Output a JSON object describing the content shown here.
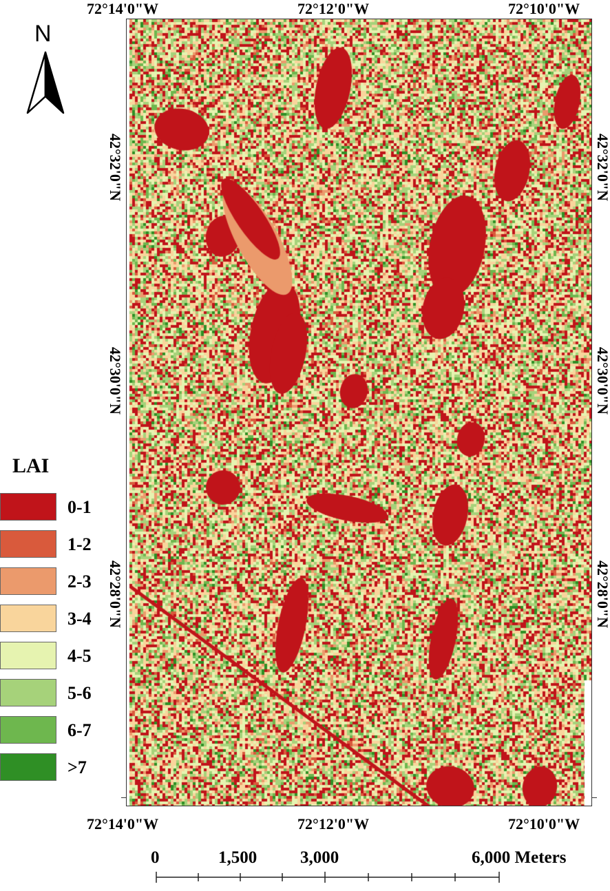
{
  "top_labels": [
    "72°14'0\"W",
    "72°12'0\"W",
    "72°10'0\"W"
  ],
  "bottom_labels": [
    "72°14'0\"W",
    "72°12'0\"W",
    "72°10'0\"W"
  ],
  "left_labels": [
    "42°32'0\"N",
    "42°30'0\"N",
    "42°28'0\"N"
  ],
  "right_labels": [
    "42°32'0\"N",
    "42°30'0\"N",
    "42°28'0\"N"
  ],
  "north_arrow": {
    "label": "N",
    "icon": "north-arrow-icon"
  },
  "legend": {
    "title": "LAI",
    "items": [
      {
        "label": "0-1",
        "color": "#c0141a"
      },
      {
        "label": "1-2",
        "color": "#d95a3c"
      },
      {
        "label": "2-3",
        "color": "#eb9a6c"
      },
      {
        "label": "3-4",
        "color": "#f9d59c"
      },
      {
        "label": "4-5",
        "color": "#e6f3b0"
      },
      {
        "label": "5-6",
        "color": "#a6d27a"
      },
      {
        "label": "6-7",
        "color": "#6eb74e"
      },
      {
        "label": ">7",
        "color": "#2f8f25"
      }
    ]
  },
  "scale_bar": {
    "labels": [
      "0",
      "1,500",
      "3,000",
      "6,000 Meters"
    ]
  }
}
